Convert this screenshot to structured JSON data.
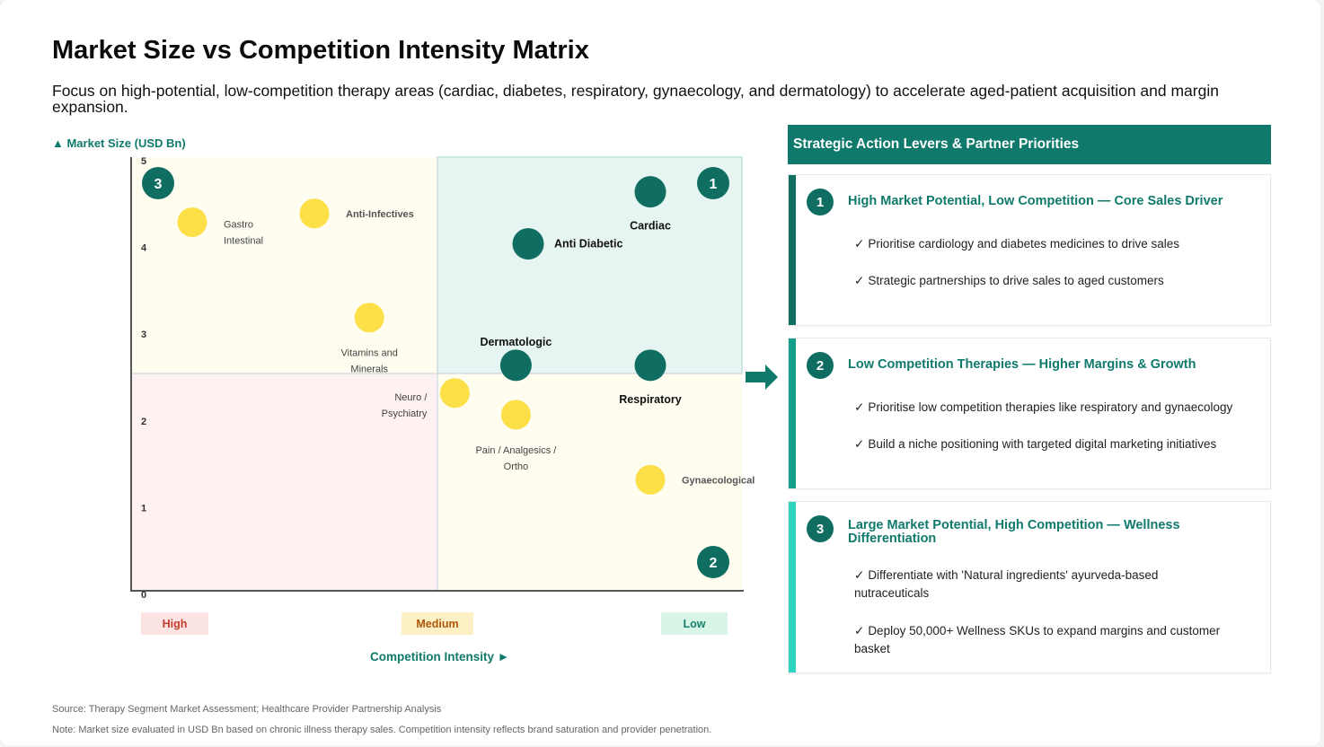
{
  "title": "Market Size vs Competition Intensity Matrix",
  "subtitle": "Focus on high-potential, low-competition therapy areas (cardiac, diabetes, respiratory, gynaecology, and dermatology) to accelerate aged-patient acquisition and margin expansion.",
  "colors": {
    "teal": "#0f7a6c",
    "dark_teal_marker": "#0f6e61",
    "yellow_marker": "#fde047",
    "quadrant_top_right": "#e6f5f1",
    "quadrant_top_left": "#fefdf0",
    "quadrant_bottom_left": "#fdf1f1",
    "quadrant_bottom_right": "#fefdf0"
  },
  "chart_data": {
    "type": "scatter",
    "title": "",
    "ylabel": "▲ Market Size (USD Bn)",
    "xlabel": "Competition Intensity ►",
    "ylim": [
      0,
      5
    ],
    "xlim": [
      0,
      1
    ],
    "y_ticks": [
      "0",
      "1",
      "2",
      "3",
      "4",
      "5"
    ],
    "x_categories": [
      "High",
      "Medium",
      "Low"
    ],
    "quadrant_badges": [
      {
        "label": "3",
        "position": "top-left"
      },
      {
        "label": "1",
        "position": "top-right"
      },
      {
        "label": "2",
        "position": "bottom-right"
      }
    ],
    "points": [
      {
        "name": "Cardiac",
        "x": 0.85,
        "y": 4.6,
        "group": "priority",
        "label_pos": "below"
      },
      {
        "name": "Anti Diabetic",
        "x": 0.65,
        "y": 4.0,
        "group": "priority",
        "label_pos": "right"
      },
      {
        "name": "Dermatologic",
        "x": 0.63,
        "y": 2.6,
        "group": "priority",
        "label_pos": "above"
      },
      {
        "name": "Respiratory",
        "x": 0.85,
        "y": 2.6,
        "group": "priority",
        "label_pos": "below"
      },
      {
        "name": "Gastro Intestinal",
        "x": 0.1,
        "y": 4.25,
        "group": "other",
        "label_pos": "right"
      },
      {
        "name": "Anti-Infectives",
        "x": 0.3,
        "y": 4.35,
        "group": "other",
        "label_pos": "right"
      },
      {
        "name": "Vitamins and Minerals",
        "x": 0.39,
        "y": 3.15,
        "group": "other",
        "label_pos": "below"
      },
      {
        "name": "Neuro / Psychiatry",
        "x": 0.53,
        "y": 2.28,
        "group": "other",
        "label_pos": "left"
      },
      {
        "name": "Pain / Analgesics / Ortho",
        "x": 0.63,
        "y": 2.03,
        "group": "other",
        "label_pos": "below"
      },
      {
        "name": "Gynaecological",
        "x": 0.85,
        "y": 1.28,
        "group": "other",
        "label_pos": "right"
      }
    ]
  },
  "panel": {
    "header": "Strategic Action Levers & Partner Priorities",
    "cards": [
      {
        "num": "1",
        "title": "High Market Potential, Low Competition — Core Sales Driver",
        "bar_color": "#0f6e61",
        "bullets": [
          "Prioritise cardiology and diabetes medicines to drive sales",
          "Strategic partnerships to drive sales to aged customers"
        ]
      },
      {
        "num": "2",
        "title": "Low Competition Therapies — Higher Margins & Growth",
        "bar_color": "#12a08a",
        "bullets": [
          "Prioritise low competition therapies like respiratory and gynaecology",
          "Build a niche positioning with targeted digital marketing initiatives"
        ]
      },
      {
        "num": "3",
        "title": "Large Market Potential, High Competition — Wellness Differentiation",
        "bar_color": "#2dd4bf",
        "bullets": [
          "Differentiate with 'Natural ingredients' ayurveda-based nutraceuticals",
          "Deploy 50,000+ Wellness SKUs to expand margins and customer basket"
        ]
      }
    ]
  },
  "footer": {
    "source": "Source: Therapy Segment Market Assessment; Healthcare Provider Partnership Analysis",
    "note": "Note: Market size evaluated in USD Bn based on chronic illness therapy sales. Competition intensity reflects brand saturation and provider penetration."
  }
}
